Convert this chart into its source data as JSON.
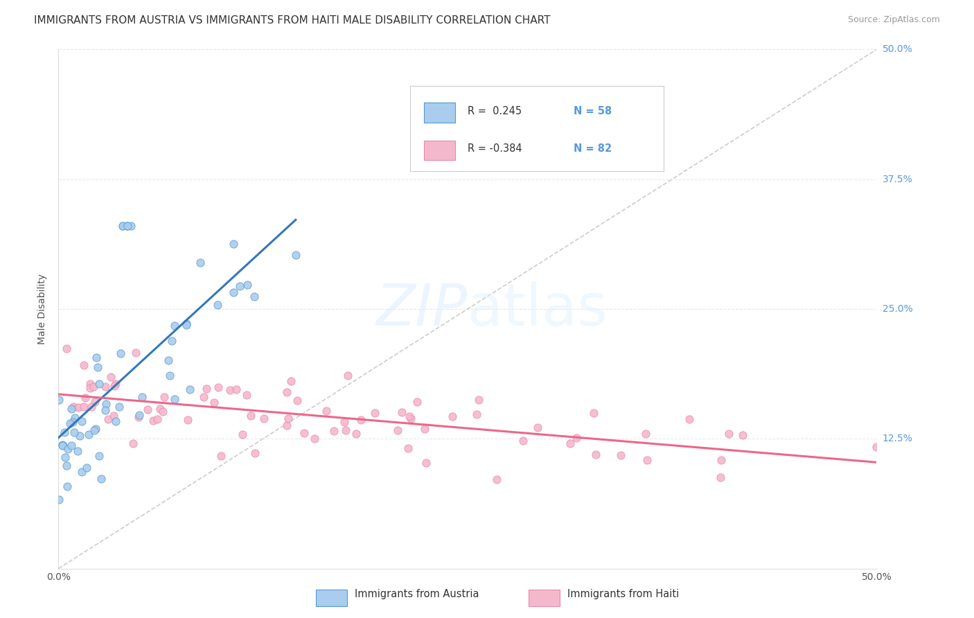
{
  "title": "IMMIGRANTS FROM AUSTRIA VS IMMIGRANTS FROM HAITI MALE DISABILITY CORRELATION CHART",
  "source": "Source: ZipAtlas.com",
  "ylabel": "Male Disability",
  "xlim": [
    0.0,
    0.5
  ],
  "ylim": [
    0.0,
    0.5
  ],
  "austria_color": "#aaccee",
  "austria_edge_color": "#5599cc",
  "haiti_color": "#f4b8cc",
  "haiti_edge_color": "#e888aa",
  "austria_line_color": "#3377bb",
  "haiti_line_color": "#ee6688",
  "diagonal_color": "#cccccc",
  "R_austria": 0.245,
  "N_austria": 58,
  "R_haiti": -0.384,
  "N_haiti": 82,
  "background_color": "#ffffff",
  "grid_color": "#e8e8e8",
  "ytick_vals": [
    0.125,
    0.25,
    0.375,
    0.5
  ],
  "ytick_labels": [
    "12.5%",
    "25.0%",
    "37.5%",
    "50.0%"
  ],
  "ytick_color": "#5599dd"
}
